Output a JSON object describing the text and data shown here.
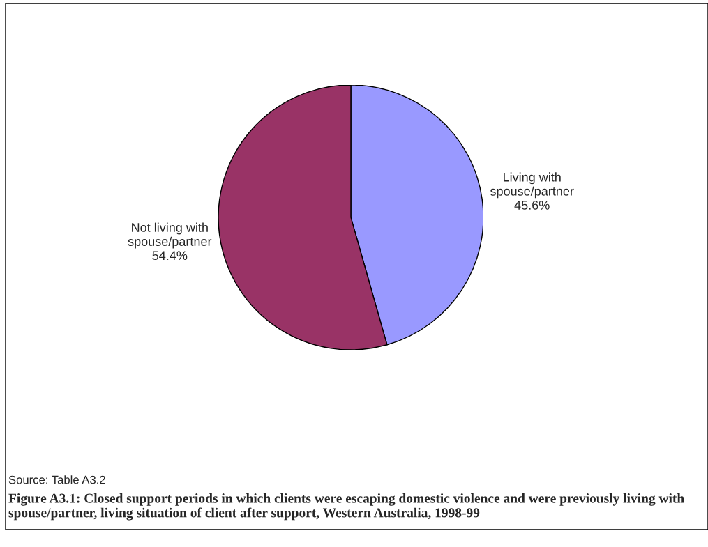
{
  "chart_data": {
    "type": "pie",
    "categories": [
      "Living with spouse/partner",
      "Not living with spouse/partner"
    ],
    "values": [
      45.6,
      54.4
    ],
    "colors": [
      "#9999ff",
      "#993366"
    ],
    "value_labels": [
      "45.6%",
      "54.4%"
    ],
    "annotations": [
      "Source: Table A3.2",
      "Figure A3.1: Closed support periods in which clients were escaping domestic violence and were previously living with spouse/partner, living situation of client after support, Western Australia, 1998-99"
    ]
  }
}
